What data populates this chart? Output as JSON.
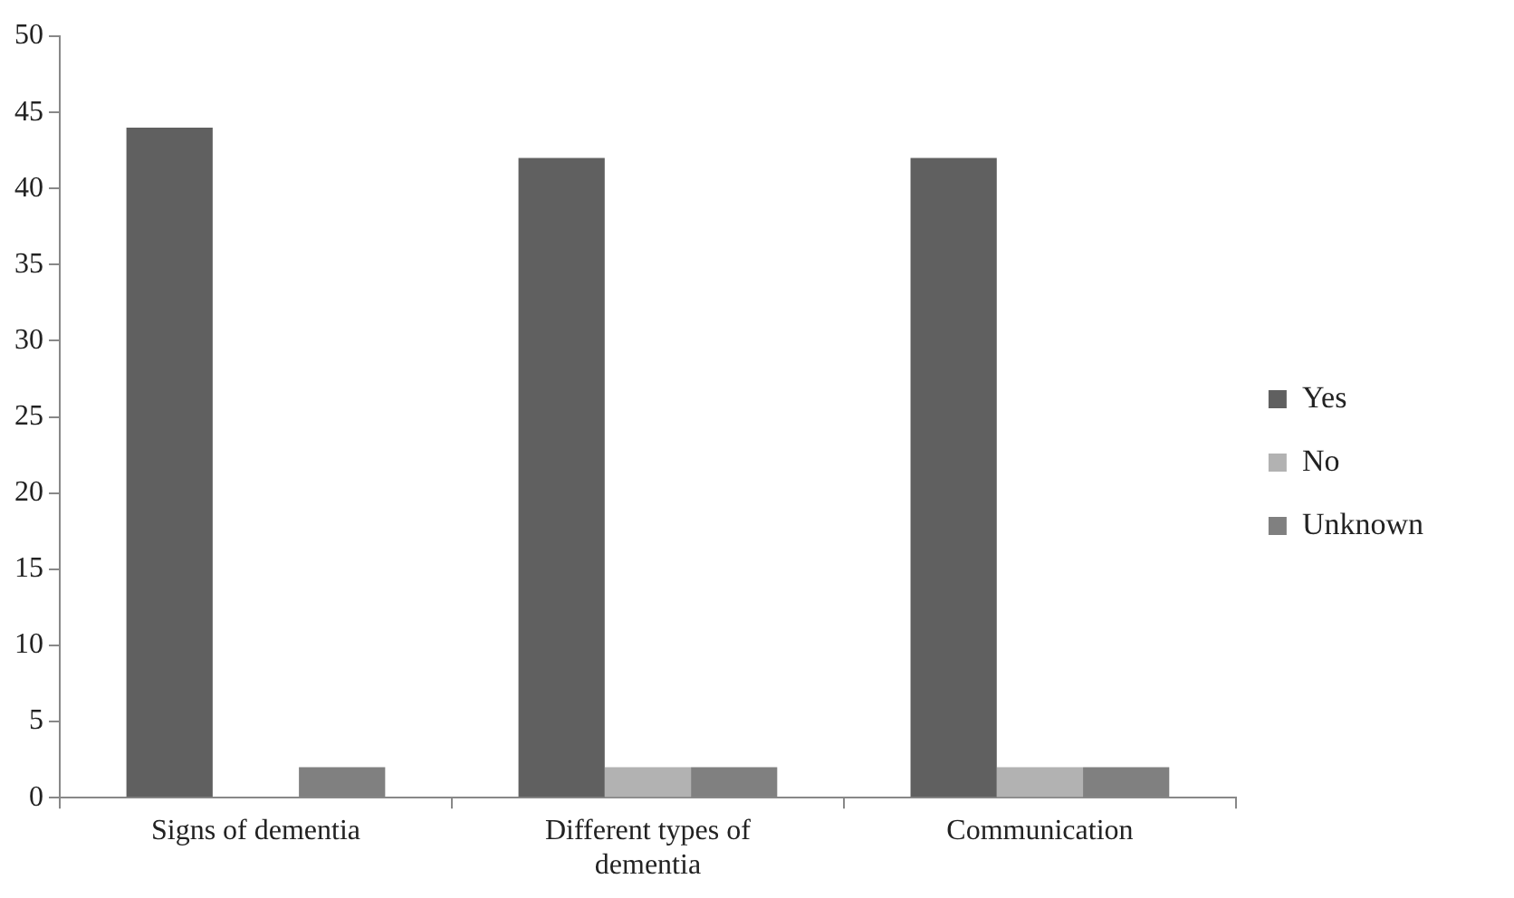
{
  "chart_data": {
    "type": "bar",
    "categories": [
      "Signs of dementia",
      "Different types of dementia",
      "Communication"
    ],
    "series": [
      {
        "name": "Yes",
        "color": "#606060",
        "values": [
          44,
          42,
          42
        ]
      },
      {
        "name": "No",
        "color": "#b2b2b2",
        "values": [
          0,
          2,
          2
        ]
      },
      {
        "name": "Unknown",
        "color": "#808080",
        "values": [
          2,
          2,
          2
        ]
      }
    ],
    "ylim": [
      0,
      50
    ],
    "yticks": [
      0,
      5,
      10,
      15,
      20,
      25,
      30,
      35,
      40,
      45,
      50
    ],
    "grid": false,
    "legend": "right"
  }
}
